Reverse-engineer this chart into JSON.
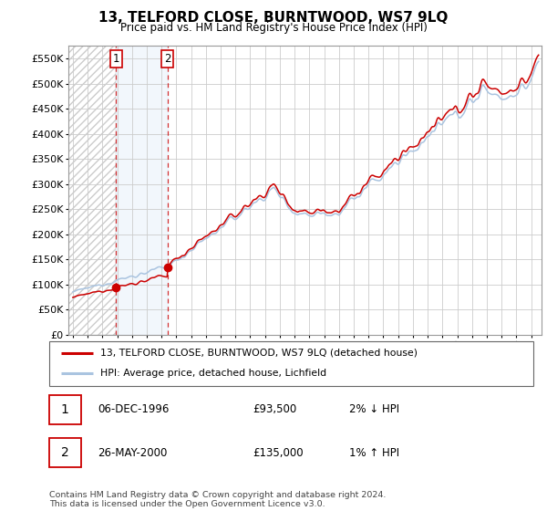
{
  "title": "13, TELFORD CLOSE, BURNTWOOD, WS7 9LQ",
  "subtitle": "Price paid vs. HM Land Registry's House Price Index (HPI)",
  "legend_line1": "13, TELFORD CLOSE, BURNTWOOD, WS7 9LQ (detached house)",
  "legend_line2": "HPI: Average price, detached house, Lichfield",
  "sale1_date": "06-DEC-1996",
  "sale1_price": "£93,500",
  "sale1_hpi": "2% ↓ HPI",
  "sale2_date": "26-MAY-2000",
  "sale2_price": "£135,000",
  "sale2_hpi": "1% ↑ HPI",
  "footer": "Contains HM Land Registry data © Crown copyright and database right 2024.\nThis data is licensed under the Open Government Licence v3.0.",
  "hpi_color": "#aac4e0",
  "price_color": "#cc0000",
  "sale_dot_color": "#cc0000",
  "marker_color": "#cc0000",
  "grid_color": "#cccccc",
  "ylim_min": 0,
  "ylim_max": 575000,
  "yticks": [
    0,
    50000,
    100000,
    150000,
    200000,
    250000,
    300000,
    350000,
    400000,
    450000,
    500000,
    550000
  ],
  "sale1_year": 1996.92,
  "sale1_value": 93500,
  "sale2_year": 2000.4,
  "sale2_value": 135000,
  "xmin": 1993.7,
  "xmax": 2025.7
}
